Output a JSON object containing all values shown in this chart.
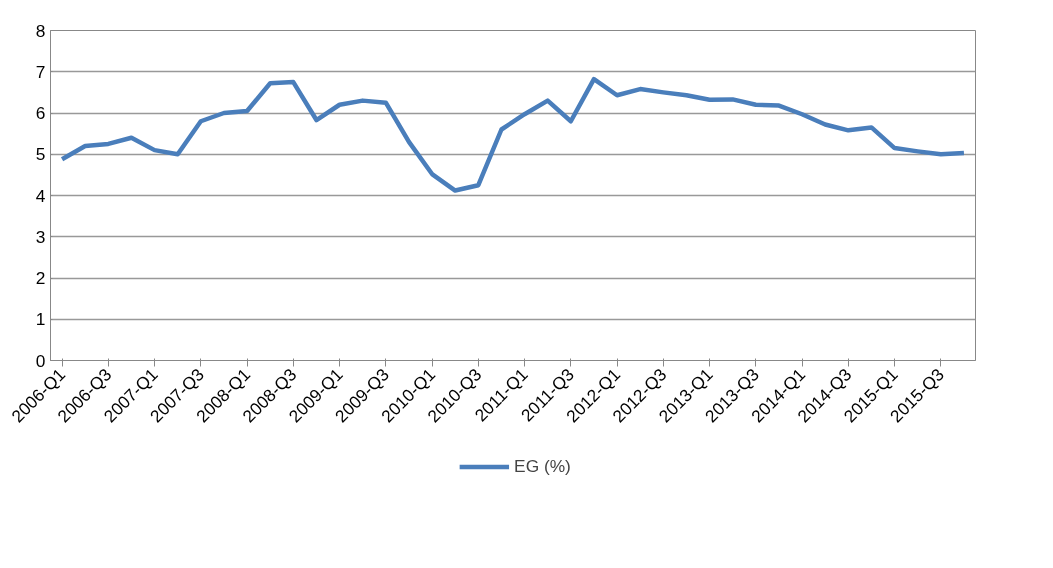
{
  "chart_data": {
    "type": "line",
    "categories": [
      "2006-Q1",
      null,
      "2006-Q3",
      null,
      "2007-Q1",
      null,
      "2007-Q3",
      null,
      "2008-Q1",
      null,
      "2008-Q3",
      null,
      "2009-Q1",
      null,
      "2009-Q3",
      null,
      "2010-Q1",
      null,
      "2010-Q3",
      null,
      "2011-Q1",
      null,
      "2011-Q3",
      null,
      "2012-Q1",
      null,
      "2012-Q3",
      null,
      "2013-Q1",
      null,
      "2013-Q3",
      null,
      "2014-Q1",
      null,
      "2014-Q3",
      null,
      "2015-Q1",
      null,
      "2015-Q3",
      null
    ],
    "series": [
      {
        "name": "EG (%)",
        "color": "#4a7ebb",
        "values": [
          4.88,
          5.2,
          5.25,
          5.4,
          5.1,
          5.0,
          5.8,
          6.0,
          6.05,
          6.72,
          6.75,
          5.83,
          6.2,
          6.3,
          6.25,
          5.3,
          4.52,
          4.12,
          4.25,
          5.6,
          5.97,
          6.3,
          5.8,
          6.82,
          6.43,
          6.58,
          6.5,
          6.43,
          6.32,
          6.33,
          6.2,
          6.18,
          5.97,
          5.72,
          5.58,
          5.65,
          5.15,
          5.07,
          5.0,
          5.03
        ]
      }
    ],
    "ylim": [
      0,
      8
    ],
    "yticks": [
      0,
      1,
      2,
      3,
      4,
      5,
      6,
      7,
      8
    ],
    "grid": "y",
    "legend": "bottom",
    "marker": "none",
    "line_style": "solid"
  }
}
